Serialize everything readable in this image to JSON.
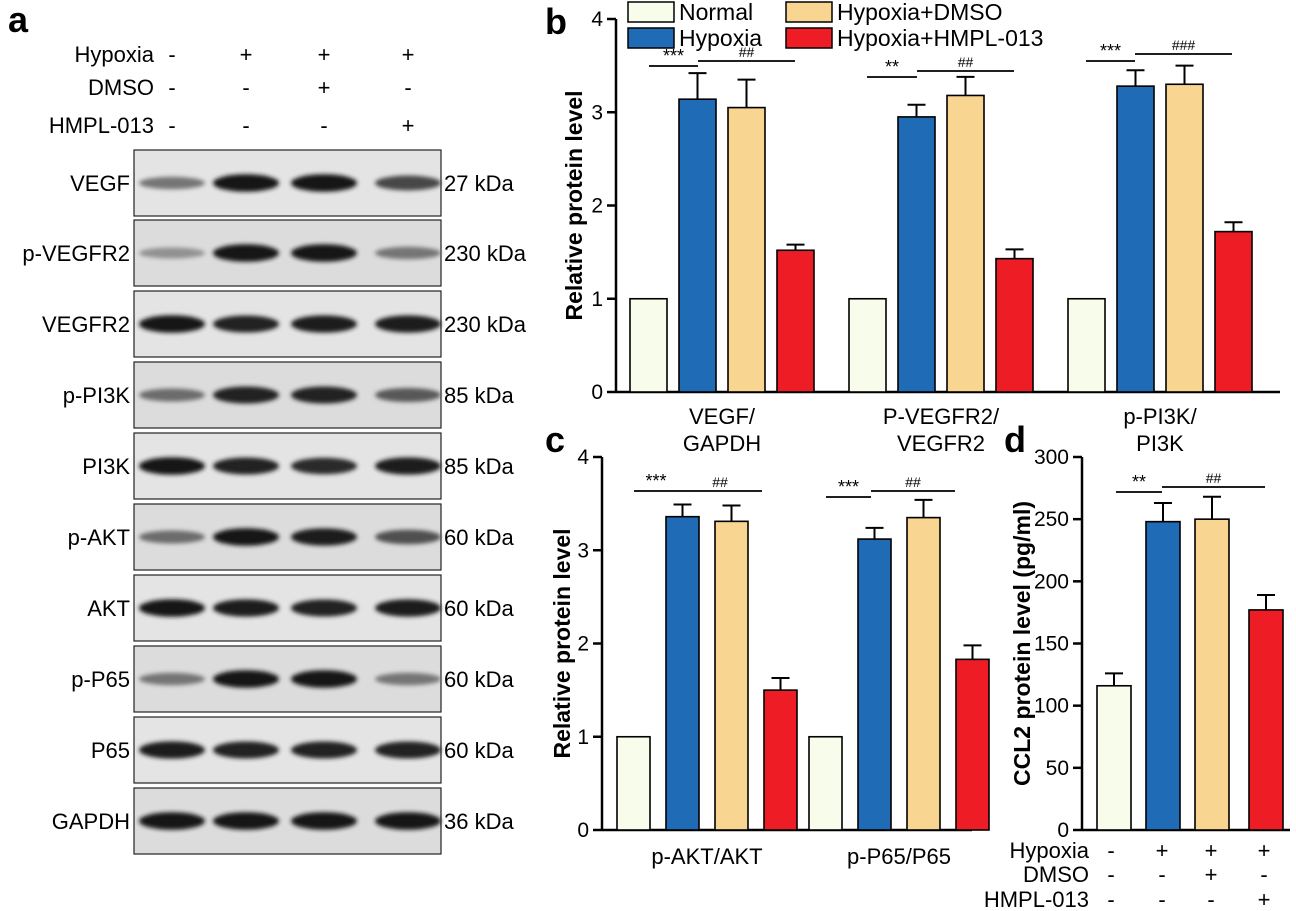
{
  "colors": {
    "normal": "#f8fcea",
    "hypoxia": "#1f6bb5",
    "hypoxia_dmso": "#f9d592",
    "hypoxia_hmpl": "#ee1c24"
  },
  "panel_a": {
    "letter": "a",
    "conditions": [
      {
        "label": "Hypoxia",
        "signs": [
          "-",
          "+",
          "+",
          "+"
        ]
      },
      {
        "label": "DMSO",
        "signs": [
          "-",
          "-",
          "+",
          "-"
        ]
      },
      {
        "label": "HMPL-013",
        "signs": [
          "-",
          "-",
          "-",
          "+"
        ]
      }
    ],
    "blots": [
      {
        "protein": "VEGF",
        "kda": "27 kDa",
        "intensity": [
          0.45,
          0.95,
          0.95,
          0.7
        ]
      },
      {
        "protein": "p-VEGFR2",
        "kda": "230 kDa",
        "intensity": [
          0.3,
          0.95,
          0.95,
          0.45
        ]
      },
      {
        "protein": "VEGFR2",
        "kda": "230 kDa",
        "intensity": [
          0.95,
          0.9,
          0.92,
          0.92
        ]
      },
      {
        "protein": "p-PI3K",
        "kda": "85 kDa",
        "intensity": [
          0.5,
          0.9,
          0.9,
          0.6
        ]
      },
      {
        "protein": "PI3K",
        "kda": "85 kDa",
        "intensity": [
          0.95,
          0.9,
          0.85,
          0.92
        ]
      },
      {
        "protein": "p-AKT",
        "kda": "60 kDa",
        "intensity": [
          0.5,
          0.95,
          0.92,
          0.65
        ]
      },
      {
        "protein": "AKT",
        "kda": "60 kDa",
        "intensity": [
          0.95,
          0.92,
          0.9,
          0.92
        ]
      },
      {
        "protein": "p-P65",
        "kda": "60 kDa",
        "intensity": [
          0.45,
          0.95,
          0.95,
          0.45
        ]
      },
      {
        "protein": "P65",
        "kda": "60 kDa",
        "intensity": [
          0.92,
          0.9,
          0.9,
          0.9
        ]
      },
      {
        "protein": "GAPDH",
        "kda": "36 kDa",
        "intensity": [
          0.95,
          0.95,
          0.95,
          0.95
        ]
      }
    ]
  },
  "chart_data": [
    {
      "panel": "b",
      "type": "bar",
      "ylabel": "Relative protein level",
      "ylim": [
        0,
        4
      ],
      "yticks": [
        0,
        1,
        2,
        3,
        4
      ],
      "categories": [
        "VEGF/\nGAPDH",
        "P-VEGFR2/\nVEGFR2",
        "p-PI3K/\nPI3K"
      ],
      "series": [
        {
          "name": "Normal",
          "values": [
            1.0,
            1.0,
            1.0
          ],
          "errors": [
            0,
            0,
            0
          ]
        },
        {
          "name": "Hypoxia",
          "values": [
            3.14,
            2.95,
            3.28
          ],
          "errors": [
            0.28,
            0.13,
            0.17
          ]
        },
        {
          "name": "Hypoxia+DMSO",
          "values": [
            3.05,
            3.18,
            3.3
          ],
          "errors": [
            0.3,
            0.2,
            0.2
          ]
        },
        {
          "name": "Hypoxia+HMPL-013",
          "values": [
            1.52,
            1.43,
            1.72
          ],
          "errors": [
            0.06,
            0.1,
            0.1
          ]
        }
      ],
      "legend_position": "top",
      "significance": [
        {
          "category": 0,
          "left": "***",
          "right": "##"
        },
        {
          "category": 1,
          "left": "**",
          "right": "##"
        },
        {
          "category": 2,
          "left": "***",
          "right": "###"
        }
      ]
    },
    {
      "panel": "c",
      "type": "bar",
      "ylabel": "Relative protein level",
      "ylim": [
        0,
        4
      ],
      "yticks": [
        0,
        1,
        2,
        3,
        4
      ],
      "categories": [
        "p-AKT/AKT",
        "p-P65/P65"
      ],
      "series": [
        {
          "name": "Normal",
          "values": [
            1.0,
            1.0
          ],
          "errors": [
            0,
            0
          ]
        },
        {
          "name": "Hypoxia",
          "values": [
            3.36,
            3.12
          ],
          "errors": [
            0.13,
            0.12
          ]
        },
        {
          "name": "Hypoxia+DMSO",
          "values": [
            3.31,
            3.35
          ],
          "errors": [
            0.17,
            0.19
          ]
        },
        {
          "name": "Hypoxia+HMPL-013",
          "values": [
            1.5,
            1.83
          ],
          "errors": [
            0.13,
            0.15
          ]
        }
      ],
      "significance": [
        {
          "category": 0,
          "left": "***",
          "right": "##"
        },
        {
          "category": 1,
          "left": "***",
          "right": "##"
        }
      ]
    },
    {
      "panel": "d",
      "type": "bar",
      "ylabel": "CCL2 protein level (pg/ml)",
      "ylim": [
        0,
        300
      ],
      "yticks": [
        0,
        50,
        100,
        150,
        200,
        250,
        300
      ],
      "categories": [
        "",
        "",
        "",
        ""
      ],
      "series": [
        {
          "name": "CCL2",
          "values": [
            116,
            248,
            250,
            177
          ],
          "errors": [
            10,
            15,
            18,
            12
          ]
        }
      ],
      "conditions": [
        {
          "label": "Hypoxia",
          "signs": [
            "-",
            "+",
            "+",
            "+"
          ]
        },
        {
          "label": "DMSO",
          "signs": [
            "-",
            "-",
            "+",
            "-"
          ]
        },
        {
          "label": "HMPL-013",
          "signs": [
            "-",
            "-",
            "-",
            "+"
          ]
        }
      ],
      "significance": [
        {
          "left": "**",
          "right": "##"
        }
      ]
    }
  ]
}
